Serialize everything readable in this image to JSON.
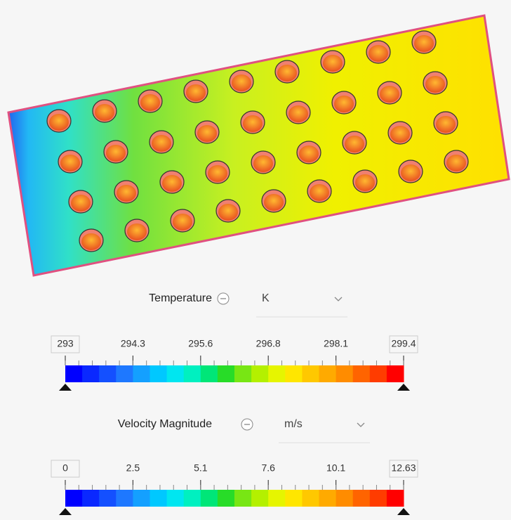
{
  "legends": [
    {
      "title": "Temperature",
      "unit": "K",
      "ticks": [
        293,
        294.3,
        295.6,
        296.8,
        298.1,
        299.4
      ]
    },
    {
      "title": "Velocity Magnitude",
      "unit": "m/s",
      "ticks": [
        0,
        2.5,
        5.1,
        7.6,
        10.1,
        12.63
      ]
    }
  ],
  "colormap": [
    "#0000ff",
    "#0a28ff",
    "#1450ff",
    "#1e78ff",
    "#14a0ff",
    "#00c8ff",
    "#00e6f0",
    "#00f0c0",
    "#00e678",
    "#28dc28",
    "#78e614",
    "#b4f000",
    "#e6f500",
    "#ffe600",
    "#ffc800",
    "#ffaa00",
    "#ff8c00",
    "#ff6400",
    "#ff3c00",
    "#ff0000"
  ]
}
